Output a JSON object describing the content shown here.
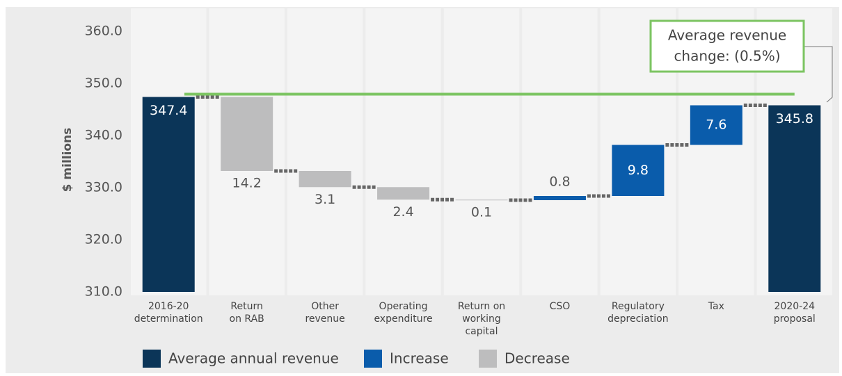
{
  "chart_data": {
    "type": "waterfall",
    "y_label": "$ millions",
    "annotation": [
      "Average revenue",
      "change: (0.5%)"
    ],
    "categories": [
      [
        "2016-20",
        "determination"
      ],
      [
        "Return",
        "on RAB"
      ],
      [
        "Other",
        "revenue"
      ],
      [
        "Operating",
        "expenditure"
      ],
      [
        "Return on",
        "working",
        "capital"
      ],
      [
        "CSO"
      ],
      [
        "Regulatory",
        "depreciation"
      ],
      [
        "Tax"
      ],
      [
        "2020-24",
        "proposal"
      ]
    ],
    "series": [
      {
        "name": "Average annual revenue",
        "role": "total",
        "color": "#0b3558",
        "values": [
          347.4,
          null,
          null,
          null,
          null,
          null,
          null,
          null,
          345.8
        ]
      },
      {
        "name": "Increase",
        "role": "increase",
        "color": "#0a5cab",
        "values": [
          null,
          null,
          null,
          null,
          null,
          0.8,
          9.8,
          7.6,
          null
        ]
      },
      {
        "name": "Decrease",
        "role": "decrease",
        "color": "#bdbdbe",
        "values": [
          null,
          14.2,
          3.1,
          2.4,
          0.1,
          null,
          null,
          null,
          null
        ]
      }
    ],
    "ylim": [
      310,
      360
    ],
    "yticks": [
      {
        "value": 310,
        "label": "310.0"
      },
      {
        "value": 320,
        "label": "320.0"
      },
      {
        "value": 330,
        "label": "330.0"
      },
      {
        "value": 340,
        "label": "340.0"
      },
      {
        "value": 350,
        "label": "350.0"
      },
      {
        "value": 360,
        "label": "360.0"
      }
    ],
    "reference_color": "#7cc462"
  }
}
